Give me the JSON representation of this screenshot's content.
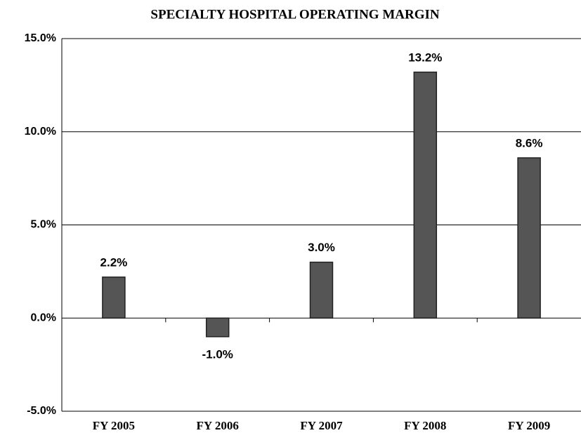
{
  "chart_data": {
    "type": "bar",
    "title": "SPECIALTY HOSPITAL OPERATING MARGIN",
    "categories": [
      "FY 2005",
      "FY 2006",
      "FY 2007",
      "FY 2008",
      "FY 2009"
    ],
    "values": [
      2.2,
      -1.0,
      3.0,
      13.2,
      8.6
    ],
    "value_labels": [
      "2.2%",
      "-1.0%",
      "3.0%",
      "13.2%",
      "8.6%"
    ],
    "color": "#555555",
    "ylim": [
      -5,
      15
    ],
    "yticks": [
      {
        "value": -5,
        "label": "-5.0%"
      },
      {
        "value": 0,
        "label": "0.0%"
      },
      {
        "value": 5,
        "label": "5.0%"
      },
      {
        "value": 10,
        "label": "10.0%"
      },
      {
        "value": 15,
        "label": "15.0%"
      }
    ],
    "grid": true
  }
}
